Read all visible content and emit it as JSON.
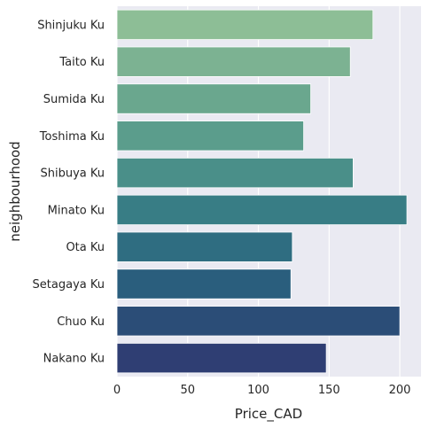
{
  "chart_data": {
    "type": "bar",
    "orientation": "horizontal",
    "categories": [
      "Shinjuku Ku",
      "Taito Ku",
      "Sumida Ku",
      "Toshima Ku",
      "Shibuya Ku",
      "Minato Ku",
      "Ota Ku",
      "Setagaya Ku",
      "Chuo Ku",
      "Nakano Ku"
    ],
    "values": [
      181,
      165,
      137,
      132,
      167,
      205,
      124,
      123,
      200,
      148
    ],
    "colors": [
      "#8dbe96",
      "#7cb292",
      "#6aa78e",
      "#5b9d8c",
      "#4a8f89",
      "#387d85",
      "#2f6d81",
      "#2a5e7d",
      "#2b4d77",
      "#2f3e73"
    ],
    "xlabel": "Price_CAD",
    "ylabel": "neighbourhood",
    "xticks": [
      0,
      50,
      100,
      150,
      200
    ],
    "xlim": [
      0,
      215
    ],
    "grid": true,
    "background": "#eaeaf2"
  }
}
